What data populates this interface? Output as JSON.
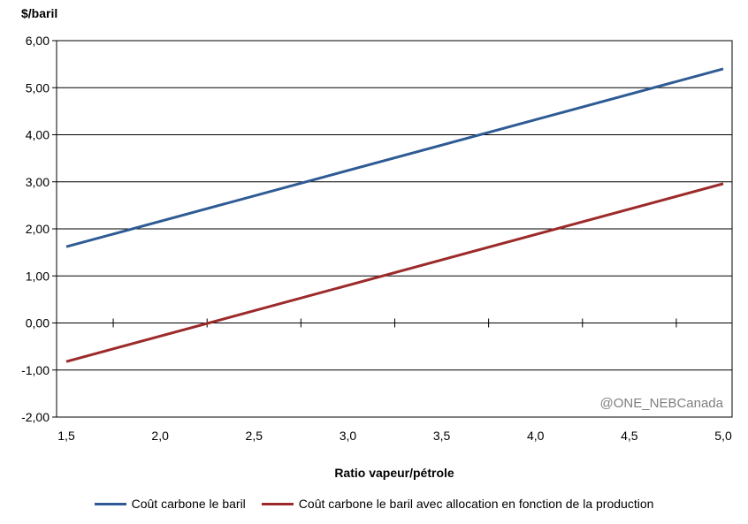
{
  "chart_data": {
    "type": "line",
    "ylabel": "$/baril",
    "xlabel": "Ratio vapeur/pétrole",
    "xlim": [
      1.5,
      5.0
    ],
    "ylim": [
      -2.0,
      6.0
    ],
    "x_ticks": [
      "1,5",
      "2,0",
      "2,5",
      "3,0",
      "3,5",
      "4,0",
      "4,5",
      "5,0"
    ],
    "y_ticks": [
      "-2,00",
      "-1,00",
      "0,00",
      "1,00",
      "2,00",
      "3,00",
      "4,00",
      "5,00",
      "6,00"
    ],
    "grid": "horizontal",
    "legend_position": "bottom",
    "series": [
      {
        "name": "Coût carbone le baril",
        "color": "#2e5b94",
        "x": [
          1.5,
          5.0
        ],
        "y": [
          1.62,
          5.4
        ]
      },
      {
        "name": "Coût carbone le baril avec allocation en fonction de la production",
        "color": "#9c2a2a",
        "x": [
          1.5,
          5.0
        ],
        "y": [
          -0.82,
          2.96
        ]
      }
    ],
    "watermark": "@ONE_NEBCanada"
  }
}
